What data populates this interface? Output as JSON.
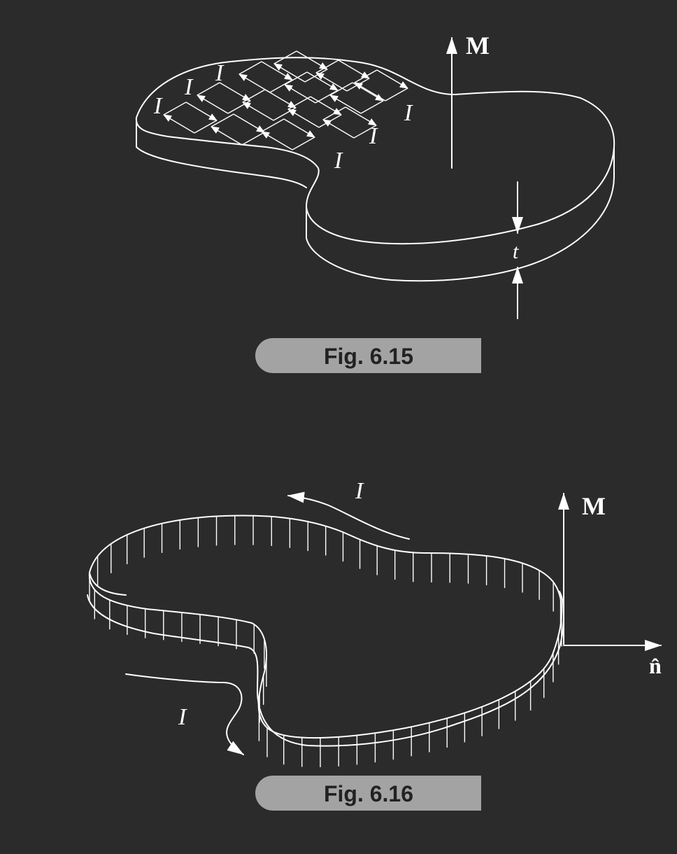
{
  "fig15": {
    "caption": "Fig. 6.15",
    "magnetization_label": "M",
    "thickness_label": "t",
    "current_label": "I"
  },
  "fig16": {
    "caption": "Fig. 6.16",
    "magnetization_label": "M",
    "normal_label": "n̂",
    "current_label": "I"
  },
  "colors": {
    "background": "#2b2b2b",
    "line": "#ffffff",
    "caption_fill": "#a3a3a3",
    "caption_text": "#222222"
  }
}
